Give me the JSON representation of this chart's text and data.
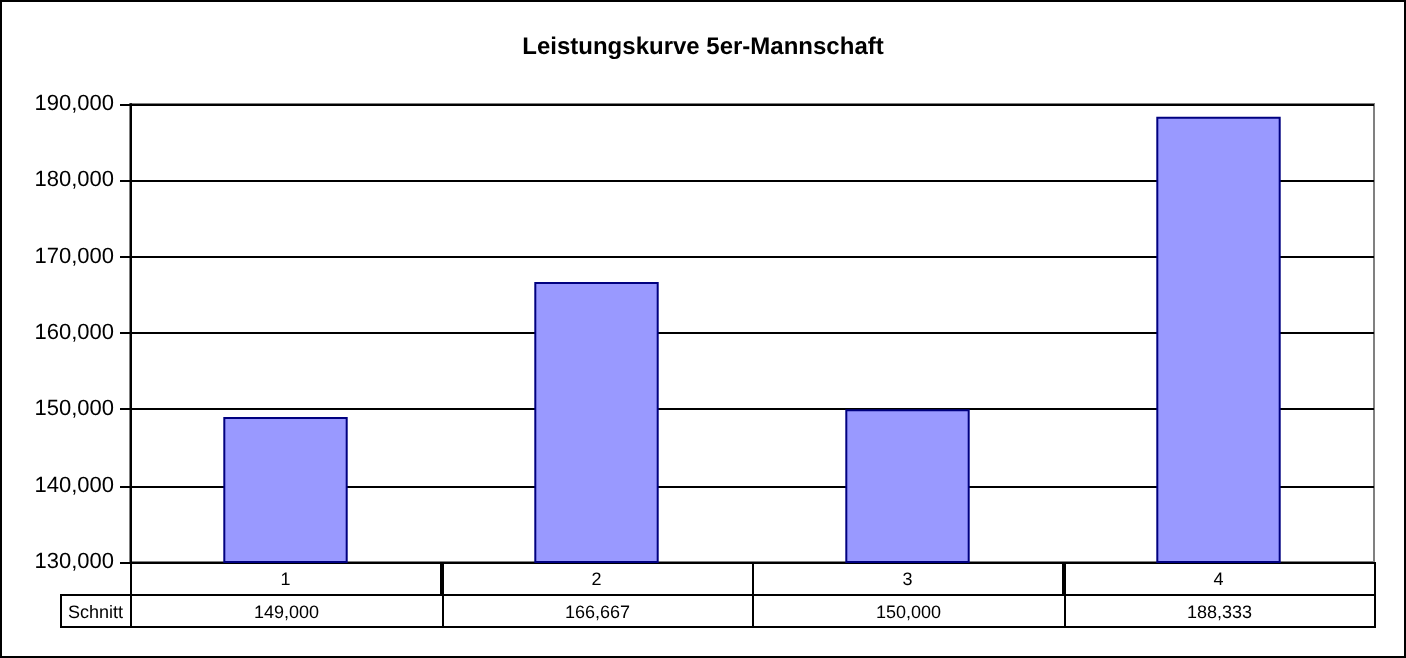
{
  "chart_data": {
    "type": "bar",
    "title": "Leistungskurve 5er-Mannschaft",
    "categories": [
      "1",
      "2",
      "3",
      "4"
    ],
    "series": [
      {
        "name": "Schnitt",
        "color": "#9999ff",
        "values": [
          149000,
          166667,
          150000,
          188333
        ],
        "value_labels": [
          "149,000",
          "166,667",
          "150,000",
          "188,333"
        ]
      }
    ],
    "ylim": [
      130000,
      190000
    ],
    "yticks": [
      {
        "value": 130000,
        "label": "130,000"
      },
      {
        "value": 140000,
        "label": "140,000"
      },
      {
        "value": 150000,
        "label": "150,000"
      },
      {
        "value": 160000,
        "label": "160,000"
      },
      {
        "value": 170000,
        "label": "170,000"
      },
      {
        "value": 180000,
        "label": "180,000"
      },
      {
        "value": 190000,
        "label": "190,000"
      }
    ],
    "grid": "y",
    "legend": false
  }
}
